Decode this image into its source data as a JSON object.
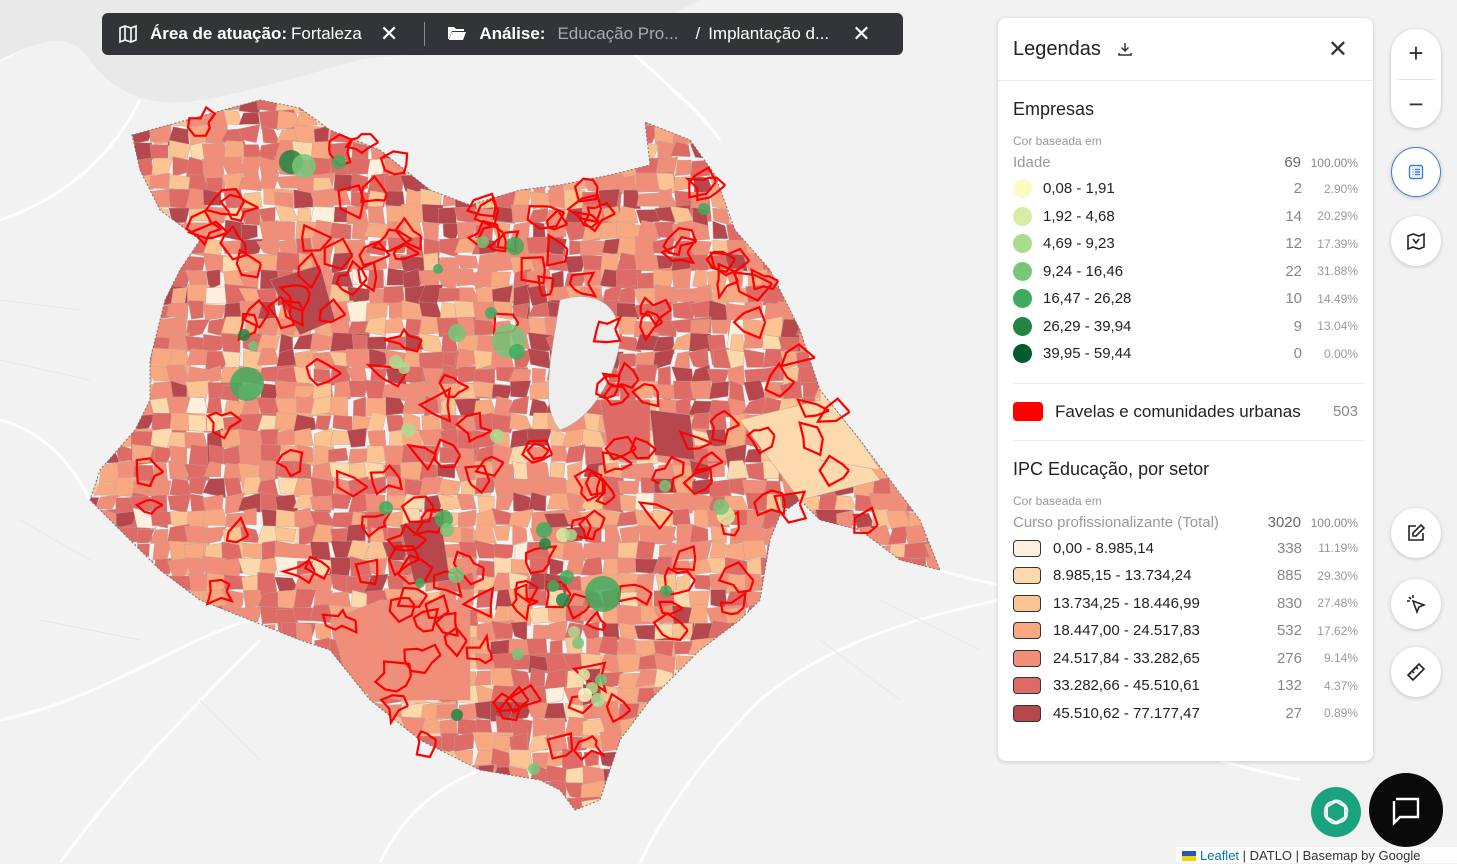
{
  "topbar": {
    "area_label": "Área de atuação:",
    "area_value": "Fortaleza",
    "analysis_label": "Análise:",
    "analysis_value": "Educação Pro...",
    "analysis_sub": "Implantação d..."
  },
  "legend": {
    "title": "Legendas",
    "empresas": {
      "title": "Empresas",
      "basis": "Cor baseada em",
      "metric": "Idade",
      "total": "69",
      "total_pct": "100.00%",
      "classes": [
        {
          "label": "0,08 - 1,91",
          "count": "2",
          "pct": "2.90%",
          "color": "#fbfbc8"
        },
        {
          "label": "1,92 - 4,68",
          "count": "14",
          "pct": "20.29%",
          "color": "#d8eca4"
        },
        {
          "label": "4,69 - 9,23",
          "count": "12",
          "pct": "17.39%",
          "color": "#aadc90"
        },
        {
          "label": "9,24 - 16,46",
          "count": "22",
          "pct": "31.88%",
          "color": "#78c679"
        },
        {
          "label": "16,47 - 26,28",
          "count": "10",
          "pct": "14.49%",
          "color": "#41ab5d"
        },
        {
          "label": "26,29 - 39,94",
          "count": "9",
          "pct": "13.04%",
          "color": "#238443"
        },
        {
          "label": "39,95 - 59,44",
          "count": "0",
          "pct": "0.00%",
          "color": "#005a32"
        }
      ]
    },
    "favelas": {
      "label": "Favelas e comunidades urbanas",
      "count": "503",
      "color": "#ff0000"
    },
    "ipc": {
      "title": "IPC Educação, por setor",
      "basis": "Cor baseada em",
      "metric": "Curso profissionalizante (Total)",
      "total": "3020",
      "total_pct": "100.00%",
      "classes": [
        {
          "label": "0,00 - 8.985,14",
          "count": "338",
          "pct": "11.19%",
          "color": "#fef0dc"
        },
        {
          "label": "8.985,15 - 13.734,24",
          "count": "885",
          "pct": "29.30%",
          "color": "#fdd9ae"
        },
        {
          "label": "13.734,25 - 18.446,99",
          "count": "830",
          "pct": "27.48%",
          "color": "#fcc393"
        },
        {
          "label": "18.447,00 - 24.517,83",
          "count": "532",
          "pct": "17.62%",
          "color": "#f9a981"
        },
        {
          "label": "24.517,84 - 33.282,65",
          "count": "276",
          "pct": "9.14%",
          "color": "#f08e7a"
        },
        {
          "label": "33.282,66 - 45.510,61",
          "count": "132",
          "pct": "4.37%",
          "color": "#de6b66"
        },
        {
          "label": "45.510,62 - 77.177,47",
          "count": "27",
          "pct": "0.89%",
          "color": "#b5474d"
        }
      ]
    }
  },
  "controls": {
    "zoom_in": "+",
    "zoom_out": "−"
  },
  "attribution": {
    "leaflet": "Leaflet",
    "rest": "| DATLO | Basemap by Google"
  }
}
